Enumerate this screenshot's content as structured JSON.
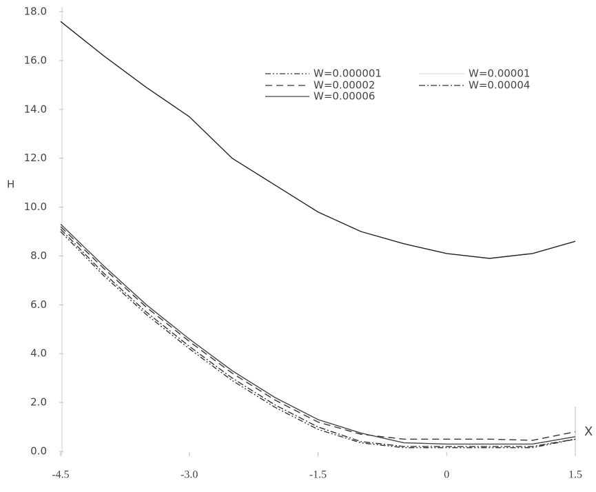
{
  "chart_data": {
    "type": "line",
    "x_label": "X",
    "y_label": "H",
    "x": [
      -4.5,
      -4,
      -3.5,
      -3,
      -2.5,
      -2,
      -1.5,
      -1,
      -0.5,
      0,
      0.5,
      1,
      1.5
    ],
    "xlim": [
      -4.5,
      1.5
    ],
    "xticks": [
      -4.5,
      {
        "value": -3,
        "label": "-3.0"
      },
      -1.5,
      0,
      1.5
    ],
    "ylim": [
      0,
      18
    ],
    "yticks": [
      {
        "value": 0,
        "label": "0.0"
      },
      {
        "value": 2,
        "label": "2.0"
      },
      {
        "value": 4,
        "label": "4.0"
      },
      {
        "value": 6,
        "label": "6.0"
      },
      {
        "value": 8,
        "label": "8.0"
      },
      {
        "value": 10,
        "label": "10.0"
      },
      {
        "value": 12,
        "label": "12.0"
      },
      {
        "value": 14,
        "label": "14.0"
      },
      {
        "value": 16,
        "label": "16.0"
      },
      {
        "value": 18,
        "label": "18.0"
      }
    ],
    "series": [
      {
        "name": "W=0.000001",
        "color": "#333333",
        "style": "dash-dot-dot",
        "values": [
          9.0,
          7.2,
          5.6,
          4.2,
          2.9,
          1.8,
          0.9,
          0.35,
          0.15,
          0.15,
          0.15,
          0.15,
          0.5
        ]
      },
      {
        "name": "W=0.00001",
        "color": "#222222",
        "style": "solid",
        "values": [
          17.6,
          16.2,
          14.9,
          13.7,
          12.0,
          10.9,
          9.8,
          9.0,
          8.5,
          8.1,
          7.9,
          8.1,
          8.6
        ]
      },
      {
        "name": "W=0.00002",
        "color": "#333333",
        "style": "dashed",
        "values": [
          9.2,
          7.5,
          5.9,
          4.5,
          3.2,
          2.1,
          1.2,
          0.7,
          0.5,
          0.5,
          0.5,
          0.45,
          0.8
        ]
      },
      {
        "name": "W=0.00004",
        "color": "#333333",
        "style": "dash-dot",
        "values": [
          9.1,
          7.3,
          5.7,
          4.3,
          3.0,
          1.9,
          1.0,
          0.4,
          0.2,
          0.2,
          0.2,
          0.2,
          0.5
        ]
      },
      {
        "name": "W=0.00006",
        "color": "#444444",
        "style": "solid",
        "values": [
          9.3,
          7.6,
          6.0,
          4.6,
          3.3,
          2.2,
          1.3,
          0.75,
          0.35,
          0.3,
          0.3,
          0.3,
          0.6
        ]
      }
    ]
  }
}
